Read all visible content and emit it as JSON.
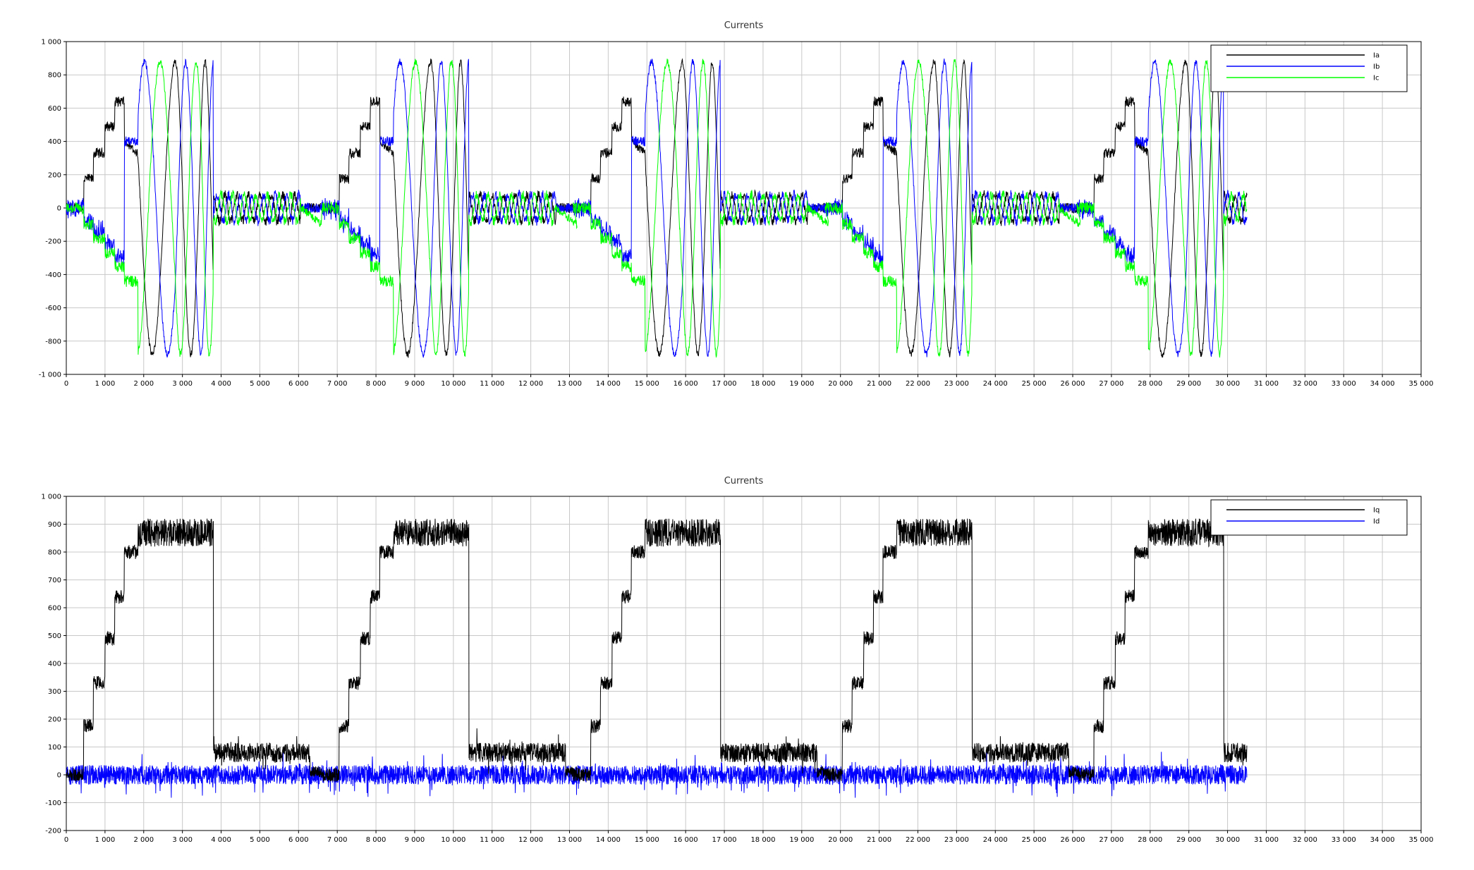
{
  "chart_data": [
    {
      "type": "line",
      "title": "Currents",
      "xlabel": "",
      "ylabel": "",
      "xlim": [
        0,
        35000
      ],
      "ylim": [
        -1000,
        1000
      ],
      "grid": true,
      "legend_position": "top-right",
      "x_ticks": [
        "0",
        "1 000",
        "2 000",
        "3 000",
        "4 000",
        "5 000",
        "6 000",
        "7 000",
        "8 000",
        "9 000",
        "10 000",
        "11 000",
        "12 000",
        "13 000",
        "14 000",
        "15 000",
        "16 000",
        "17 000",
        "18 000",
        "19 000",
        "20 000",
        "21 000",
        "22 000",
        "23 000",
        "24 000",
        "25 000",
        "26 000",
        "27 000",
        "28 000",
        "29 000",
        "30 000",
        "31 000",
        "32 000",
        "33 000",
        "34 000",
        "35 000"
      ],
      "y_ticks": [
        "-1 000",
        "-800",
        "-600",
        "-400",
        "-200",
        "0",
        "200",
        "400",
        "600",
        "800",
        "1 000"
      ],
      "cycle_starts": [
        0,
        6600,
        13100,
        19600,
        26100
      ],
      "cycle_pattern": {
        "rampup_levels": [
          0,
          175,
          330,
          490,
          640,
          800
        ],
        "rampup_ends": [
          450,
          700,
          1000,
          1250,
          1500,
          1850
        ],
        "rotation_window": [
          1850,
          3800
        ],
        "rotation_periods": [
          1200,
          800,
          650,
          550,
          500
        ],
        "idle_window": [
          3800,
          6600
        ],
        "idle_amplitude": 80,
        "idle_period": 300,
        "noise": 20
      },
      "x_end": 30500,
      "series": [
        {
          "name": "Ia",
          "color": "#000000"
        },
        {
          "name": "Ib",
          "color": "#0000ff"
        },
        {
          "name": "Ic",
          "color": "#00ff00"
        }
      ]
    },
    {
      "type": "line",
      "title": "Currents",
      "xlabel": "",
      "ylabel": "",
      "xlim": [
        0,
        35000
      ],
      "ylim": [
        -200,
        1000
      ],
      "grid": true,
      "legend_position": "top-right",
      "x_ticks": [
        "0",
        "1 000",
        "2 000",
        "3 000",
        "4 000",
        "5 000",
        "6 000",
        "7 000",
        "8 000",
        "9 000",
        "10 000",
        "11 000",
        "12 000",
        "13 000",
        "14 000",
        "15 000",
        "16 000",
        "17 000",
        "18 000",
        "19 000",
        "20 000",
        "21 000",
        "22 000",
        "23 000",
        "24 000",
        "25 000",
        "26 000",
        "27 000",
        "28 000",
        "29 000",
        "30 000",
        "31 000",
        "32 000",
        "33 000",
        "34 000",
        "35 000"
      ],
      "y_ticks": [
        "-200",
        "-100",
        "0",
        "100",
        "200",
        "300",
        "400",
        "500",
        "600",
        "700",
        "800",
        "900",
        "1 000"
      ],
      "cycle_starts": [
        0,
        6600,
        13100,
        19600,
        26100
      ],
      "cycle_pattern": {
        "iq_levels": [
          0,
          175,
          330,
          490,
          640,
          800,
          870
        ],
        "iq_step_ends": [
          450,
          700,
          1000,
          1250,
          1500,
          1850,
          3800
        ],
        "iq_idle_window": [
          3800,
          6300
        ],
        "iq_idle_level": 80,
        "iq_noise_high": 50,
        "iq_noise_idle": 35,
        "id_noise": 35
      },
      "x_end": 30500,
      "series": [
        {
          "name": "Iq",
          "color": "#000000"
        },
        {
          "name": "Id",
          "color": "#0000ff"
        }
      ]
    }
  ]
}
